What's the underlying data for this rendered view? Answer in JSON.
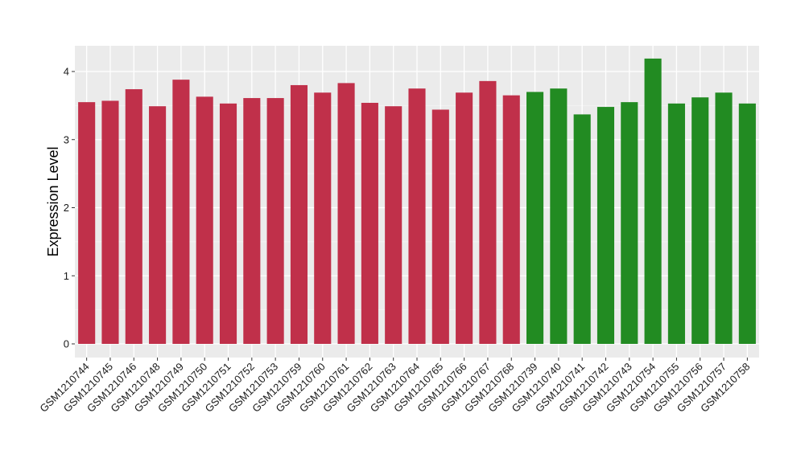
{
  "chart_data": {
    "type": "bar",
    "ylabel": "Expression Level",
    "xlabel": "",
    "ylim": [
      0,
      4.4
    ],
    "yticks": [
      0,
      1,
      2,
      3,
      4
    ],
    "grid": true,
    "panel_background": "#ebebeb",
    "colors": {
      "group1": "#c0304a",
      "group2": "#228b22"
    },
    "categories": [
      "GSM1210744",
      "GSM1210745",
      "GSM1210746",
      "GSM1210748",
      "GSM1210749",
      "GSM1210750",
      "GSM1210751",
      "GSM1210752",
      "GSM1210753",
      "GSM1210759",
      "GSM1210760",
      "GSM1210761",
      "GSM1210762",
      "GSM1210763",
      "GSM1210764",
      "GSM1210765",
      "GSM1210766",
      "GSM1210767",
      "GSM1210768",
      "GSM1210739",
      "GSM1210740",
      "GSM1210741",
      "GSM1210742",
      "GSM1210743",
      "GSM1210754",
      "GSM1210755",
      "GSM1210756",
      "GSM1210757",
      "GSM1210758"
    ],
    "values": [
      3.55,
      3.57,
      3.74,
      3.49,
      3.88,
      3.63,
      3.53,
      3.61,
      3.61,
      3.8,
      3.69,
      3.83,
      3.54,
      3.49,
      3.75,
      3.44,
      3.69,
      3.86,
      3.65,
      3.7,
      3.75,
      3.37,
      3.48,
      3.55,
      4.19,
      3.53,
      3.62,
      3.69,
      3.53
    ],
    "groups": [
      "group1",
      "group1",
      "group1",
      "group1",
      "group1",
      "group1",
      "group1",
      "group1",
      "group1",
      "group1",
      "group1",
      "group1",
      "group1",
      "group1",
      "group1",
      "group1",
      "group1",
      "group1",
      "group1",
      "group2",
      "group2",
      "group2",
      "group2",
      "group2",
      "group2",
      "group2",
      "group2",
      "group2",
      "group2"
    ]
  }
}
